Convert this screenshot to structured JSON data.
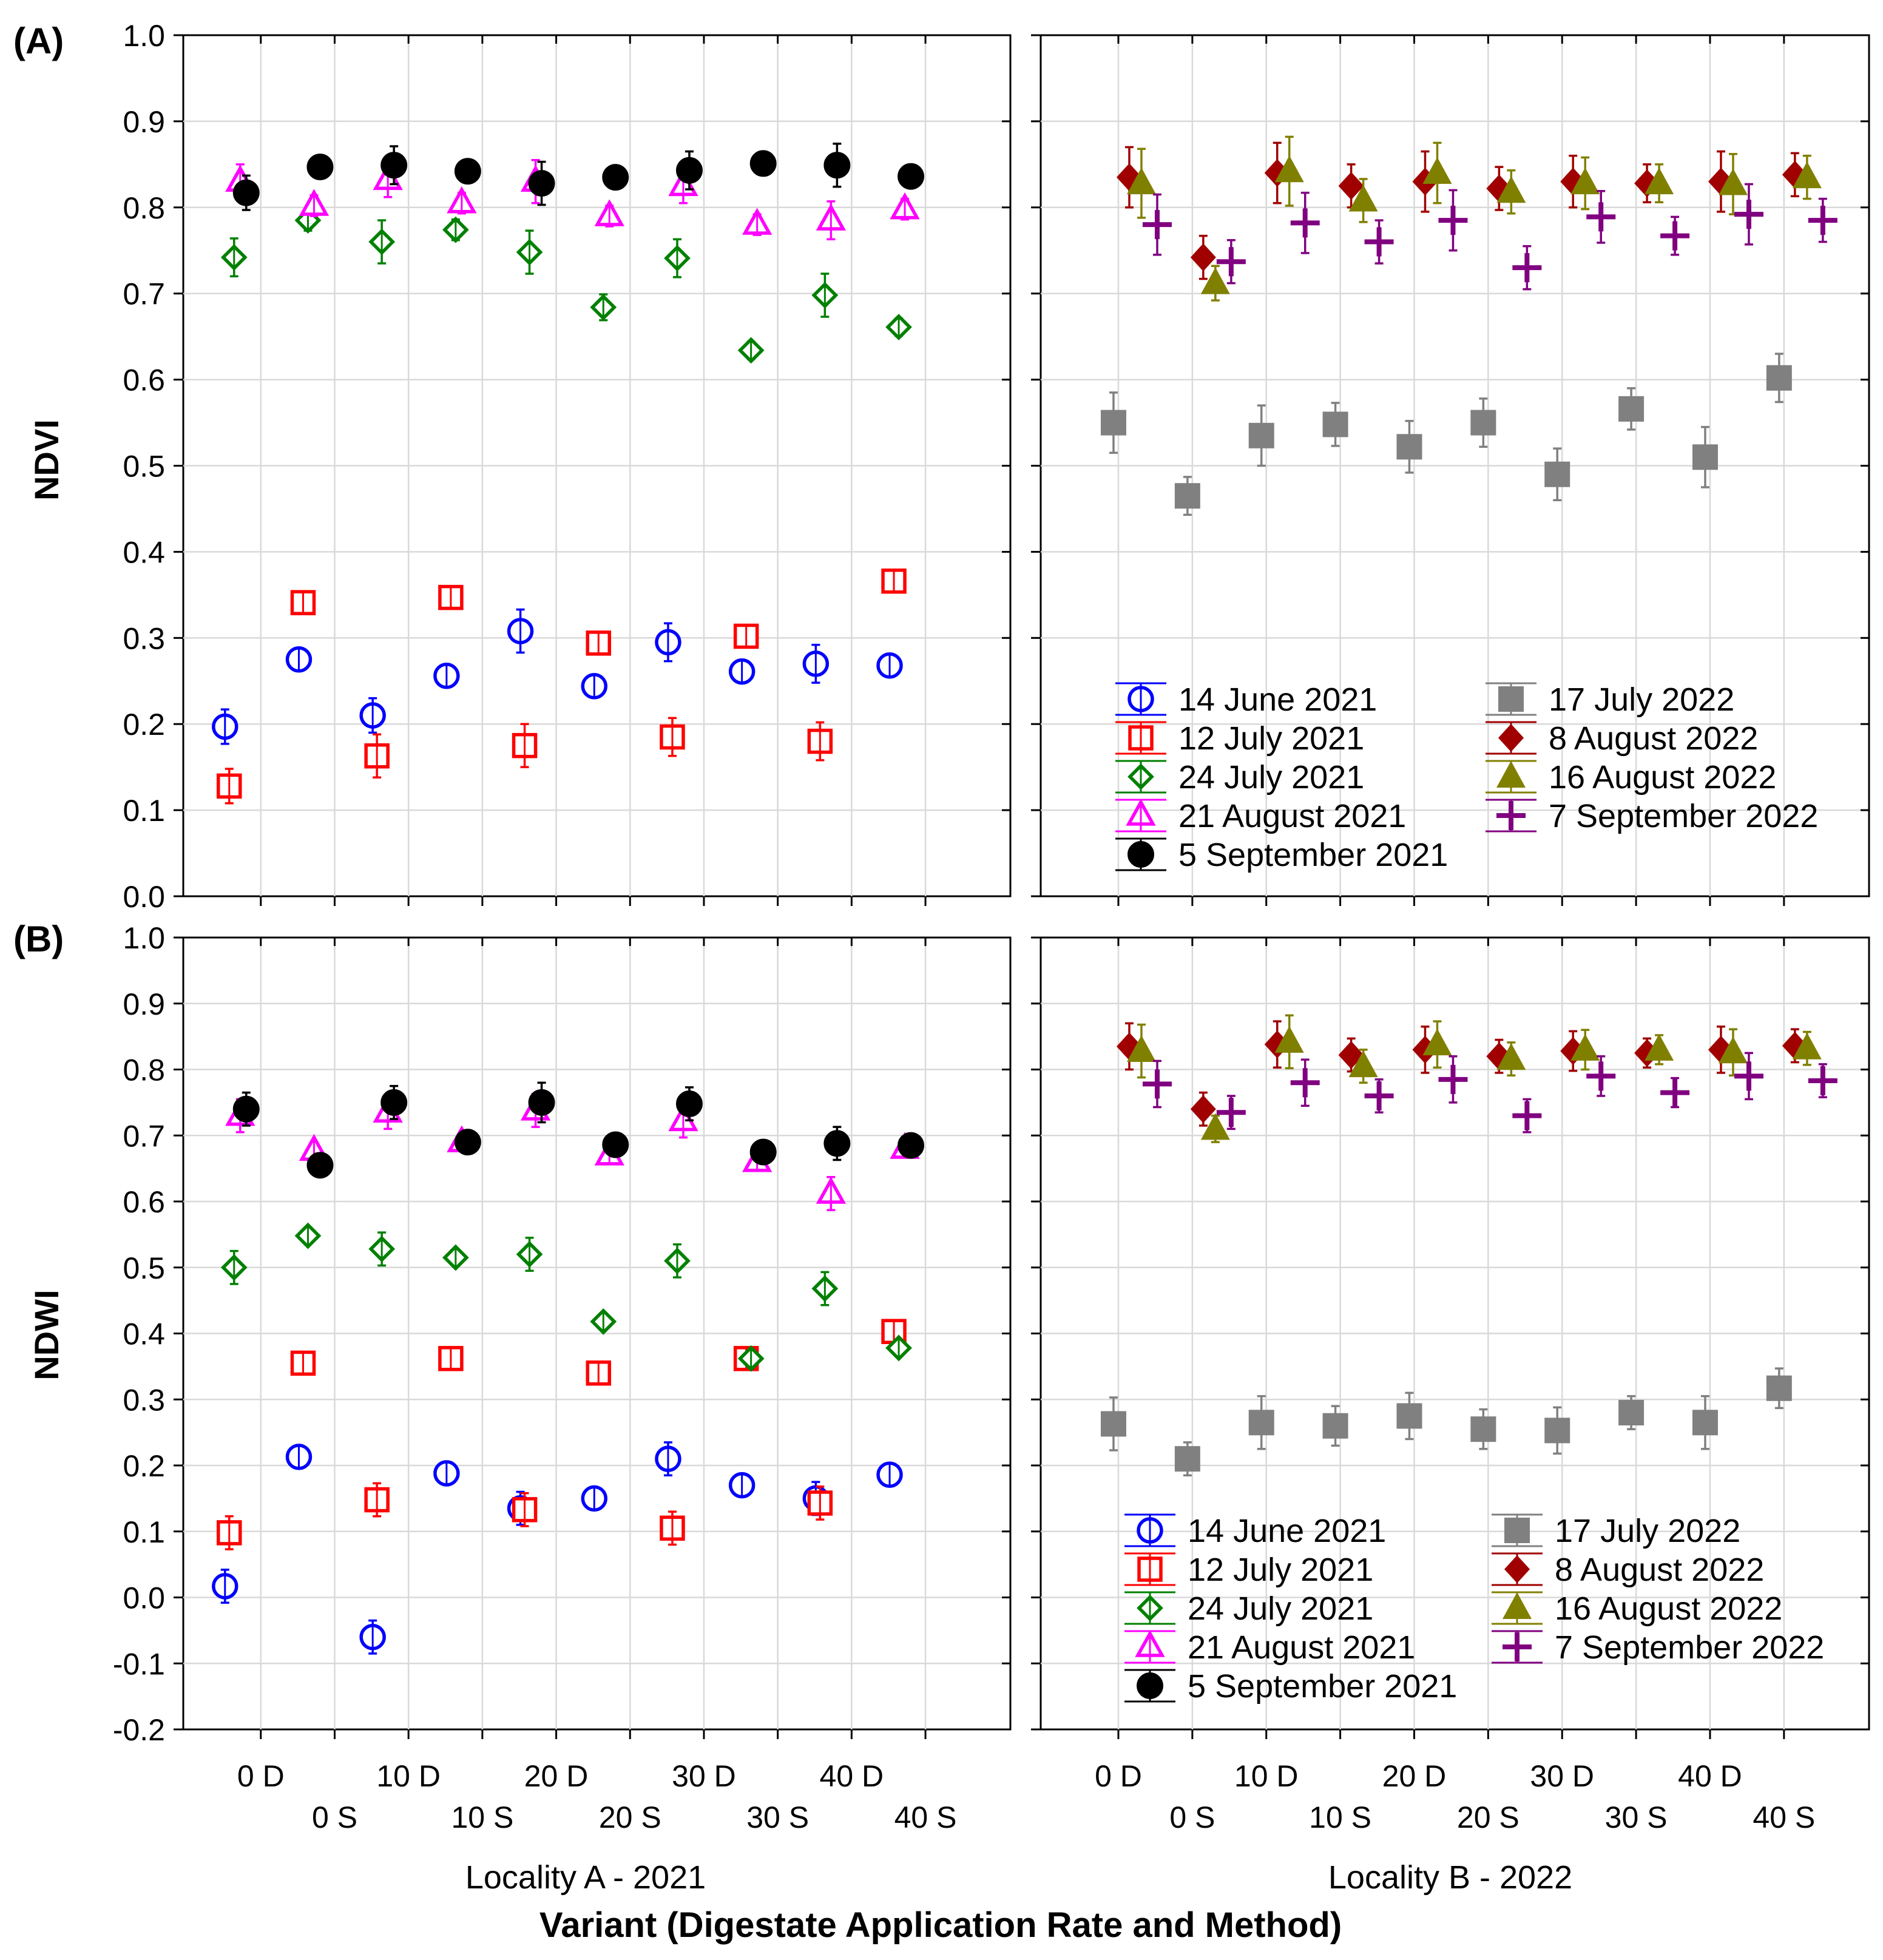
{
  "figure": {
    "panel_labels": [
      "(A)",
      "(B)"
    ],
    "x_title": "Variant (Digestate Application Rate and Method)",
    "locality_labels": [
      "Locality A - 2021",
      "Locality B - 2022"
    ]
  },
  "chart_data": [
    {
      "id": "A-left",
      "type": "scatter",
      "ylabel": "NDVI",
      "ylim": [
        0.0,
        1.0
      ],
      "yticks": [
        "0.0",
        "0.1",
        "0.2",
        "0.3",
        "0.4",
        "0.5",
        "0.6",
        "0.7",
        "0.8",
        "0.9",
        "1.0"
      ],
      "categories": [
        "0 D",
        "0 S",
        "10 D",
        "10 S",
        "20 D",
        "20 S",
        "30 D",
        "30 S",
        "40 D",
        "40 S"
      ],
      "series": [
        {
          "name": "14 June 2021",
          "marker": "circle-open",
          "color": "#0000ff",
          "values": [
            0.197,
            0.275,
            0.21,
            0.256,
            0.308,
            0.244,
            0.295,
            0.261,
            0.27,
            0.268
          ],
          "errors": [
            0.02,
            0.012,
            0.02,
            0.012,
            0.025,
            0.012,
            0.022,
            0.012,
            0.022,
            0.012
          ]
        },
        {
          "name": "12 July 2021",
          "marker": "square-open",
          "color": "#ff0000",
          "values": [
            0.128,
            0.341,
            0.163,
            0.347,
            0.175,
            0.294,
            0.185,
            0.302,
            0.18,
            0.366
          ],
          "errors": [
            0.02,
            0.012,
            0.025,
            0.012,
            0.025,
            0.012,
            0.022,
            0.012,
            0.022,
            0.012
          ]
        },
        {
          "name": "24 July 2021",
          "marker": "diamond-open",
          "color": "#008000",
          "values": [
            0.742,
            0.785,
            0.76,
            0.774,
            0.748,
            0.684,
            0.741,
            0.634,
            0.698,
            0.661
          ],
          "errors": [
            0.022,
            0.012,
            0.025,
            0.012,
            0.025,
            0.015,
            0.022,
            0.01,
            0.025,
            0.01
          ]
        },
        {
          "name": "21 August 2021",
          "marker": "triangle-open",
          "color": "#ff00ff",
          "values": [
            0.83,
            0.802,
            0.832,
            0.805,
            0.83,
            0.79,
            0.825,
            0.78,
            0.785,
            0.798
          ],
          "errors": [
            0.02,
            0.012,
            0.02,
            0.012,
            0.025,
            0.012,
            0.02,
            0.012,
            0.022,
            0.012
          ]
        },
        {
          "name": "5 September 2021",
          "marker": "circle-filled",
          "color": "#000000",
          "values": [
            0.817,
            0.847,
            0.849,
            0.842,
            0.828,
            0.835,
            0.843,
            0.851,
            0.849,
            0.836
          ],
          "errors": [
            0.02,
            0.012,
            0.022,
            0.012,
            0.025,
            0.012,
            0.022,
            0.012,
            0.025,
            0.012
          ]
        }
      ]
    },
    {
      "id": "A-right",
      "type": "scatter",
      "ylabel": "",
      "ylim": [
        0.0,
        1.0
      ],
      "categories": [
        "0 D",
        "0 S",
        "10 D",
        "10 S",
        "20 D",
        "20 S",
        "30 D",
        "30 S",
        "40 D",
        "40 S"
      ],
      "series": [
        {
          "name": "17 July 2022",
          "marker": "square-filled",
          "color": "#808080",
          "values": [
            0.55,
            0.465,
            0.535,
            0.548,
            0.522,
            0.55,
            0.49,
            0.566,
            0.51,
            0.602
          ],
          "errors": [
            0.035,
            0.022,
            0.035,
            0.025,
            0.03,
            0.028,
            0.03,
            0.024,
            0.035,
            0.028
          ]
        },
        {
          "name": "8 August 2022",
          "marker": "diamond-filled",
          "color": "#a00000",
          "values": [
            0.835,
            0.742,
            0.84,
            0.825,
            0.83,
            0.822,
            0.83,
            0.828,
            0.83,
            0.838
          ],
          "errors": [
            0.035,
            0.025,
            0.035,
            0.025,
            0.035,
            0.025,
            0.03,
            0.022,
            0.035,
            0.025
          ]
        },
        {
          "name": "16 August 2022",
          "marker": "triangle-filled",
          "color": "#808000",
          "values": [
            0.828,
            0.712,
            0.842,
            0.808,
            0.84,
            0.818,
            0.828,
            0.828,
            0.827,
            0.835
          ],
          "errors": [
            0.04,
            0.02,
            0.04,
            0.025,
            0.035,
            0.025,
            0.03,
            0.022,
            0.035,
            0.025
          ]
        },
        {
          "name": "7 September 2022",
          "marker": "plus",
          "color": "#800080",
          "values": [
            0.78,
            0.737,
            0.782,
            0.76,
            0.785,
            0.73,
            0.789,
            0.767,
            0.792,
            0.785
          ],
          "errors": [
            0.035,
            0.025,
            0.035,
            0.025,
            0.035,
            0.025,
            0.03,
            0.022,
            0.035,
            0.025
          ]
        }
      ],
      "legend": {
        "placement": "bottom"
      }
    },
    {
      "id": "B-left",
      "type": "scatter",
      "ylabel": "NDWI",
      "ylim": [
        -0.2,
        1.0
      ],
      "yticks": [
        "-0.2",
        "-0.1",
        "0.0",
        "0.1",
        "0.2",
        "0.3",
        "0.4",
        "0.5",
        "0.6",
        "0.7",
        "0.8",
        "0.9",
        "1.0"
      ],
      "categories": [
        "0 D",
        "0 S",
        "10 D",
        "10 S",
        "20 D",
        "20 S",
        "30 D",
        "30 S",
        "40 D",
        "40 S"
      ],
      "series": [
        {
          "name": "14 June 2021",
          "marker": "circle-open",
          "color": "#0000ff",
          "values": [
            0.017,
            0.213,
            -0.06,
            0.188,
            0.135,
            0.15,
            0.21,
            0.17,
            0.15,
            0.186
          ],
          "errors": [
            0.025,
            0.012,
            0.025,
            0.012,
            0.025,
            0.012,
            0.025,
            0.012,
            0.025,
            0.012
          ]
        },
        {
          "name": "12 July 2021",
          "marker": "square-open",
          "color": "#ff0000",
          "values": [
            0.098,
            0.355,
            0.148,
            0.362,
            0.133,
            0.34,
            0.105,
            0.362,
            0.143,
            0.403
          ],
          "errors": [
            0.025,
            0.012,
            0.025,
            0.012,
            0.025,
            0.012,
            0.025,
            0.012,
            0.025,
            0.012
          ]
        },
        {
          "name": "24 July 2021",
          "marker": "diamond-open",
          "color": "#008000",
          "values": [
            0.5,
            0.548,
            0.528,
            0.515,
            0.52,
            0.418,
            0.51,
            0.362,
            0.468,
            0.378
          ],
          "errors": [
            0.025,
            0.012,
            0.025,
            0.012,
            0.025,
            0.012,
            0.025,
            0.012,
            0.025,
            0.012
          ]
        },
        {
          "name": "21 August 2021",
          "marker": "triangle-open",
          "color": "#ff00ff",
          "values": [
            0.73,
            0.677,
            0.735,
            0.69,
            0.738,
            0.67,
            0.722,
            0.66,
            0.612,
            0.68
          ],
          "errors": [
            0.025,
            0.012,
            0.025,
            0.012,
            0.025,
            0.012,
            0.025,
            0.012,
            0.025,
            0.012
          ]
        },
        {
          "name": "5 September 2021",
          "marker": "circle-filled",
          "color": "#000000",
          "values": [
            0.74,
            0.655,
            0.75,
            0.69,
            0.75,
            0.686,
            0.748,
            0.675,
            0.688,
            0.685
          ],
          "errors": [
            0.025,
            0.012,
            0.025,
            0.012,
            0.03,
            0.012,
            0.025,
            0.012,
            0.025,
            0.012
          ]
        }
      ]
    },
    {
      "id": "B-right",
      "type": "scatter",
      "ylabel": "",
      "ylim": [
        -0.2,
        1.0
      ],
      "categories": [
        "0 D",
        "0 S",
        "10 D",
        "10 S",
        "20 D",
        "20 S",
        "30 D",
        "30 S",
        "40 D",
        "40 S"
      ],
      "series": [
        {
          "name": "17 July 2022",
          "marker": "square-filled",
          "color": "#808080",
          "values": [
            0.263,
            0.21,
            0.265,
            0.26,
            0.275,
            0.255,
            0.253,
            0.28,
            0.265,
            0.317
          ],
          "errors": [
            0.04,
            0.025,
            0.04,
            0.03,
            0.035,
            0.03,
            0.035,
            0.025,
            0.04,
            0.03
          ]
        },
        {
          "name": "8 August 2022",
          "marker": "diamond-filled",
          "color": "#a00000",
          "values": [
            0.835,
            0.74,
            0.838,
            0.822,
            0.83,
            0.82,
            0.828,
            0.825,
            0.83,
            0.836
          ],
          "errors": [
            0.035,
            0.025,
            0.035,
            0.025,
            0.035,
            0.025,
            0.03,
            0.022,
            0.035,
            0.025
          ]
        },
        {
          "name": "16 August 2022",
          "marker": "triangle-filled",
          "color": "#808000",
          "values": [
            0.828,
            0.71,
            0.842,
            0.805,
            0.838,
            0.816,
            0.83,
            0.83,
            0.826,
            0.832
          ],
          "errors": [
            0.04,
            0.02,
            0.04,
            0.025,
            0.035,
            0.025,
            0.03,
            0.022,
            0.035,
            0.025
          ]
        },
        {
          "name": "7 September 2022",
          "marker": "plus",
          "color": "#800080",
          "values": [
            0.778,
            0.735,
            0.78,
            0.76,
            0.785,
            0.73,
            0.79,
            0.765,
            0.79,
            0.783
          ],
          "errors": [
            0.035,
            0.025,
            0.035,
            0.025,
            0.035,
            0.025,
            0.03,
            0.022,
            0.035,
            0.025
          ]
        }
      ],
      "legend": {
        "placement": "bottom"
      }
    }
  ]
}
